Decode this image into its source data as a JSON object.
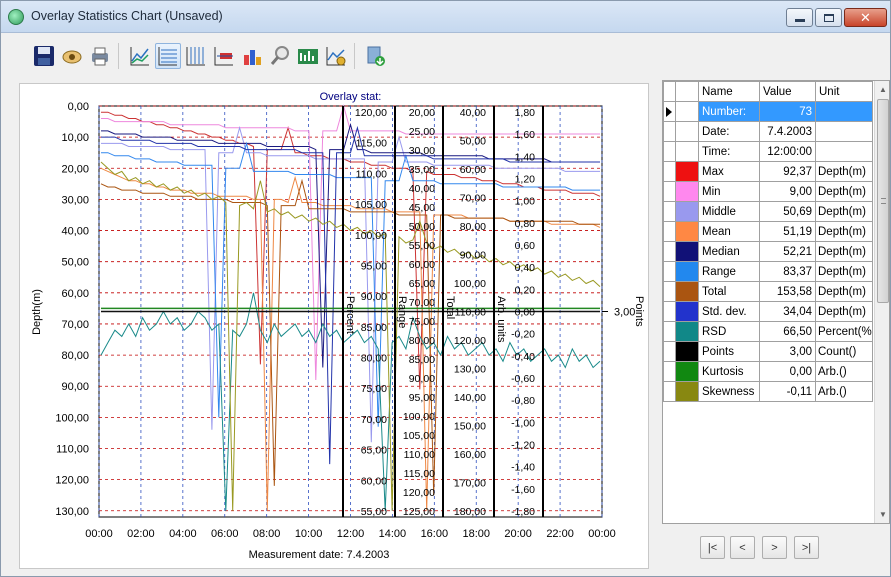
{
  "window": {
    "title": "Overlay Statistics Chart (Unsaved)"
  },
  "toolbar": {
    "buttons": [
      {
        "icon": "save-icon"
      },
      {
        "icon": "properties-icon"
      },
      {
        "icon": "print-icon"
      },
      {
        "icon": "line-chart-icon"
      },
      {
        "icon": "horizontal-grid-icon"
      },
      {
        "icon": "vertical-grid-icon"
      },
      {
        "icon": "legend-icon"
      },
      {
        "icon": "3d-bar-chart-icon"
      },
      {
        "icon": "zoom-icon"
      },
      {
        "icon": "statistics-icon"
      },
      {
        "icon": "chart-settings-icon"
      },
      {
        "icon": "export-icon"
      }
    ]
  },
  "chart_data": {
    "type": "line",
    "title": "Overlay stat:",
    "xlabel": "Measurement date: 7.4.2003",
    "x_ticks": [
      "00:00",
      "02:00",
      "04:00",
      "06:00",
      "08:00",
      "10:00",
      "12:00",
      "14:00",
      "16:00",
      "18:00",
      "20:00",
      "22:00",
      "00:00"
    ],
    "xlim": [
      "00:00",
      "24:00"
    ],
    "ylabel": "Depth(m)",
    "y_ticks": [
      "0,00",
      "10,00",
      "20,00",
      "30,00",
      "40,00",
      "50,00",
      "60,00",
      "70,00",
      "80,00",
      "90,00",
      "100,00",
      "110,00",
      "120,00",
      "130,00"
    ],
    "ylim": [
      0,
      132
    ],
    "grid": true,
    "secondary_axes": [
      {
        "label": "Percent",
        "ticks": [
          "120,00",
          "115,00",
          "110,00",
          "105,00",
          "100,00",
          "95,00",
          "90,00",
          "85,00",
          "80,00",
          "75,00",
          "70,00",
          "65,00",
          "60,00",
          "55,00"
        ]
      },
      {
        "label": "Range",
        "ticks": [
          "20,00",
          "25,00",
          "30,00",
          "35,00",
          "40,00",
          "45,00",
          "50,00",
          "55,00",
          "60,00",
          "65,00",
          "70,00",
          "75,00",
          "80,00",
          "85,00",
          "90,00",
          "95,00",
          "100,00",
          "105,00",
          "110,00",
          "115,00",
          "120,00",
          "125,00"
        ]
      },
      {
        "label": "Total",
        "ticks": [
          "40,00",
          "50,00",
          "60,00",
          "70,00",
          "80,00",
          "90,00",
          "100,00",
          "110,00",
          "120,00",
          "130,00",
          "140,00",
          "150,00",
          "160,00",
          "170,00",
          "180,00"
        ]
      },
      {
        "label": "Arb. units",
        "ticks": [
          "1,80",
          "1,60",
          "1,40",
          "1,20",
          "1,00",
          "0,80",
          "0,60",
          "0,40",
          "0,20",
          "0,00",
          "-0,20",
          "-0,40",
          "-0,60",
          "-0,80",
          "-1,00",
          "-1,20",
          "-1,40",
          "-1,60",
          "-1,80"
        ]
      }
    ],
    "right_axis": {
      "label": "Points",
      "value_label": "3,00"
    },
    "points_value": 3.0,
    "series": [
      {
        "stat": "Max",
        "color": "#cc3333",
        "values": [
          2,
          2,
          3,
          3,
          4,
          4,
          5,
          5,
          6,
          6,
          7,
          7,
          8,
          8,
          9,
          9,
          10,
          10,
          11,
          11,
          12,
          12,
          13,
          13,
          14,
          14,
          14,
          15,
          15,
          15,
          16,
          16,
          16,
          17,
          17,
          17,
          18,
          18,
          18,
          19,
          19,
          19,
          20,
          20,
          20,
          21,
          21,
          21,
          22,
          22,
          22,
          22,
          23,
          23,
          23,
          24,
          24,
          24,
          25,
          25,
          25,
          26,
          26,
          26,
          27,
          27,
          27,
          27,
          28,
          28,
          28,
          28,
          29
        ]
      },
      {
        "stat": "Min",
        "color": "#ee88dd",
        "values": [
          4,
          4,
          5,
          5,
          5,
          5,
          5,
          5,
          5,
          5,
          6,
          6,
          6,
          6,
          6,
          6,
          6,
          6,
          7,
          7,
          7,
          7,
          7,
          7,
          7,
          7,
          7,
          7,
          8,
          8,
          8,
          8,
          8,
          8,
          8,
          8,
          8,
          8,
          8,
          8,
          8,
          8,
          8,
          8,
          9,
          9,
          9,
          9,
          9,
          9,
          9,
          9,
          9,
          9,
          9,
          9,
          9,
          9,
          9,
          9,
          9,
          9,
          9,
          9,
          9,
          9,
          9,
          9,
          9,
          9,
          9,
          9,
          9
        ]
      },
      {
        "stat": "Middle",
        "color": "#9999ee",
        "values": [
          12,
          12,
          12,
          12,
          13,
          13,
          13,
          13,
          13,
          13,
          14,
          14,
          14,
          14,
          14,
          14,
          14,
          15,
          15,
          15,
          15,
          15,
          15,
          15,
          16,
          16,
          16,
          16,
          16,
          16,
          16,
          17,
          17,
          17,
          17,
          17,
          17,
          17,
          17,
          18,
          18,
          18,
          18,
          18,
          18,
          18,
          18,
          18,
          19,
          19,
          19,
          19,
          19,
          19,
          19,
          19,
          19,
          20,
          20,
          20,
          20,
          20,
          20,
          20,
          20,
          20,
          20,
          21,
          21,
          21,
          21,
          21,
          21
        ]
      },
      {
        "stat": "Mean",
        "color": "#ee8844",
        "values": [
          20,
          21,
          22,
          23,
          24,
          24,
          25,
          25,
          26,
          26,
          27,
          27,
          27,
          28,
          28,
          28,
          28,
          29,
          29,
          29,
          29,
          29,
          30,
          30,
          30,
          30,
          30,
          31,
          31,
          31,
          31,
          31,
          32,
          32,
          32,
          32,
          32,
          33,
          33,
          33,
          33,
          33,
          34,
          34,
          34,
          34,
          34,
          35,
          35,
          35,
          35,
          35,
          35,
          36,
          36,
          36,
          36,
          36,
          36,
          37,
          37,
          37,
          37,
          37,
          37,
          38,
          38,
          38,
          38,
          38,
          38,
          38,
          39
        ]
      },
      {
        "stat": "Median",
        "color": "#1a1a80",
        "values": [
          8,
          8,
          9,
          9,
          9,
          9,
          10,
          10,
          10,
          10,
          10,
          11,
          11,
          11,
          11,
          11,
          11,
          12,
          12,
          12,
          12,
          12,
          12,
          12,
          13,
          13,
          13,
          13,
          13,
          13,
          13,
          14,
          14,
          14,
          14,
          14,
          14,
          14,
          14,
          15,
          15,
          15,
          15,
          15,
          15,
          15,
          15,
          16,
          16,
          16,
          16,
          16,
          16,
          16,
          16,
          16,
          17,
          17,
          17,
          17,
          17,
          17,
          17,
          17,
          17,
          18,
          18,
          18,
          18,
          18,
          18,
          18,
          18
        ]
      },
      {
        "stat": "Range",
        "color": "#3388ee",
        "values": [
          15,
          15,
          16,
          16,
          16,
          17,
          17,
          17,
          18,
          18,
          18,
          18,
          19,
          19,
          19,
          19,
          19,
          20,
          20,
          20,
          20,
          20,
          21,
          21,
          21,
          21,
          21,
          21,
          22,
          22,
          22,
          22,
          22,
          22,
          23,
          23,
          23,
          23,
          23,
          23,
          23,
          24,
          24,
          24,
          24,
          24,
          24,
          24,
          24,
          25,
          25,
          25,
          25,
          25,
          25,
          25,
          25,
          25,
          26,
          26,
          26,
          26,
          26,
          26,
          26,
          26,
          26,
          26,
          27,
          27,
          27,
          27,
          27
        ]
      },
      {
        "stat": "Total",
        "color": "#aa5511",
        "values": [
          25,
          26,
          26,
          27,
          27,
          27,
          28,
          28,
          28,
          28,
          29,
          29,
          29,
          29,
          30,
          30,
          30,
          30,
          30,
          31,
          31,
          31,
          31,
          31,
          32,
          32,
          32,
          32,
          32,
          32,
          33,
          33,
          33,
          33,
          33,
          33,
          34,
          34,
          34,
          34,
          34,
          34,
          34,
          35,
          35,
          35,
          35,
          35,
          35,
          35,
          35,
          36,
          36,
          36,
          36,
          36,
          36,
          36,
          36,
          37,
          37,
          37,
          37,
          37,
          37,
          37,
          37,
          37,
          37,
          38,
          38,
          38,
          38
        ]
      },
      {
        "stat": "Std. dev.",
        "color": "#2233aa",
        "values": [
          10,
          10,
          10,
          11,
          11,
          11,
          11,
          11,
          12,
          12,
          12,
          12,
          12,
          12,
          13,
          13,
          13,
          13,
          13,
          13,
          13,
          14,
          14,
          14,
          14,
          14,
          14,
          14,
          14,
          15,
          15,
          15,
          15,
          15,
          15,
          15,
          15,
          15,
          16,
          16,
          16,
          16,
          16,
          16,
          16,
          16,
          16,
          16,
          17,
          17,
          17,
          17,
          17,
          17,
          17,
          17,
          17,
          17,
          17,
          18,
          18,
          18,
          18,
          18,
          18,
          18,
          18,
          18,
          18,
          18,
          18,
          18,
          18
        ]
      },
      {
        "stat": "RSD",
        "color": "#1a8a8a",
        "values": [
          80,
          76,
          72,
          74,
          70,
          74,
          68,
          72,
          70,
          66,
          70,
          68,
          72,
          70,
          66,
          68,
          72,
          70,
          68,
          72,
          74,
          70,
          68,
          72,
          76,
          70,
          74,
          72,
          70,
          74,
          72,
          76,
          70,
          74,
          72,
          76,
          74,
          72,
          76,
          74,
          78,
          72,
          76,
          74,
          78,
          76,
          74,
          78,
          76,
          80,
          74,
          78,
          76,
          80,
          78,
          76,
          80,
          78,
          82,
          76,
          80,
          78,
          82,
          80,
          78,
          82,
          80,
          84,
          78,
          82,
          80,
          84,
          82
        ]
      },
      {
        "stat": "Points",
        "color": "#111111",
        "values": [
          66,
          66,
          66,
          66,
          66,
          66,
          66,
          66,
          66,
          66,
          66,
          66,
          66,
          66,
          66,
          66,
          66,
          66,
          66,
          66,
          66,
          66,
          66,
          66,
          66,
          66,
          66,
          66,
          66,
          66,
          66,
          66,
          66,
          66,
          66,
          66,
          66,
          66,
          66,
          66,
          66,
          66,
          66,
          66,
          66,
          66,
          66,
          66,
          66,
          66,
          66,
          66,
          66,
          66,
          66,
          66,
          66,
          66,
          66,
          66,
          66,
          66,
          66,
          66,
          66,
          66,
          66,
          66,
          66,
          66,
          66,
          66,
          66
        ]
      },
      {
        "stat": "Kurtosis",
        "color": "#228822",
        "values": [
          65,
          65,
          65,
          65,
          65,
          65,
          65,
          65,
          65,
          65,
          65,
          65,
          65,
          65,
          65,
          65,
          65,
          65,
          65,
          65,
          65,
          65,
          65,
          65,
          65,
          65,
          65,
          65,
          65,
          65,
          65,
          65,
          65,
          65,
          65,
          65,
          65,
          65,
          65,
          65,
          65,
          65,
          65,
          65,
          65,
          65,
          65,
          65,
          65,
          65,
          65,
          65,
          65,
          65,
          65,
          65,
          65,
          65,
          65,
          65,
          65,
          65,
          65,
          65,
          65,
          65,
          65,
          65,
          65,
          65,
          65,
          65,
          65
        ]
      },
      {
        "stat": "Skewness",
        "color": "#999922",
        "values": [
          18,
          20,
          22,
          21,
          24,
          23,
          25,
          24,
          26,
          25,
          27,
          26,
          28,
          27,
          29,
          28,
          30,
          29,
          31,
          30,
          32,
          31,
          33,
          32,
          34,
          33,
          35,
          34,
          36,
          35,
          37,
          36,
          38,
          37,
          39,
          38,
          40,
          39,
          41,
          40,
          42,
          41,
          43,
          42,
          44,
          43,
          45,
          44,
          46,
          45,
          47,
          46,
          48,
          47,
          49,
          48,
          50,
          49,
          51,
          50,
          52,
          51,
          53,
          52,
          54,
          53,
          55,
          54,
          56,
          55,
          57,
          56,
          58
        ]
      }
    ]
  },
  "stats_table": {
    "headers": {
      "name": "Name",
      "value": "Value",
      "unit": "Unit"
    },
    "rows": [
      {
        "name": "Number:",
        "value": "73",
        "unit": "",
        "swatch": ""
      },
      {
        "name": "Date:",
        "value": "7.4.2003",
        "unit": "",
        "swatch": ""
      },
      {
        "name": "Time:",
        "value": "12:00:00",
        "unit": "",
        "swatch": ""
      },
      {
        "name": "Max",
        "value": "92,37",
        "unit": "Depth(m)",
        "swatch": "#ee1111"
      },
      {
        "name": "Min",
        "value": "9,00",
        "unit": "Depth(m)",
        "swatch": "#ff88ee"
      },
      {
        "name": "Middle",
        "value": "50,69",
        "unit": "Depth(m)",
        "swatch": "#9999ee"
      },
      {
        "name": "Mean",
        "value": "51,19",
        "unit": "Depth(m)",
        "swatch": "#ff8844"
      },
      {
        "name": "Median",
        "value": "52,21",
        "unit": "Depth(m)",
        "swatch": "#111177"
      },
      {
        "name": "Range",
        "value": "83,37",
        "unit": "Depth(m)",
        "swatch": "#2288ee"
      },
      {
        "name": "Total",
        "value": "153,58",
        "unit": "Depth(m)",
        "swatch": "#aa5511"
      },
      {
        "name": "Std. dev.",
        "value": "34,04",
        "unit": "Depth(m)",
        "swatch": "#2233cc"
      },
      {
        "name": "RSD",
        "value": "66,50",
        "unit": "Percent(%",
        "swatch": "#118888"
      },
      {
        "name": "Points",
        "value": "3,00",
        "unit": "Count()",
        "swatch": "#000000"
      },
      {
        "name": "Kurtosis",
        "value": "0,00",
        "unit": "Arb.()",
        "swatch": "#118811"
      },
      {
        "name": "Skewness",
        "value": "-0,11",
        "unit": "Arb.()",
        "swatch": "#888811"
      }
    ]
  },
  "navigation": {
    "first": "|<",
    "prev": "<",
    "next": ">",
    "last": ">|"
  }
}
